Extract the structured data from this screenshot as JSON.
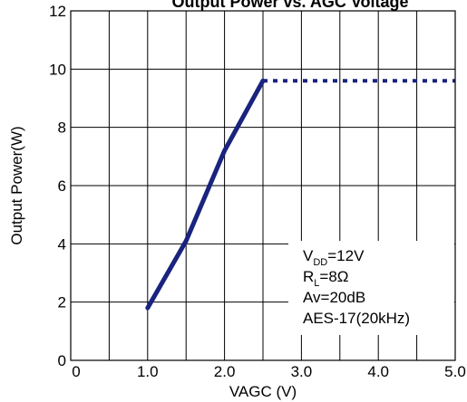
{
  "chart_data": {
    "type": "line",
    "title": "Output Power vs. AGC Voltage",
    "xlabel": "VAGC (V)",
    "ylabel": "Output Power(W)",
    "xlim": [
      0,
      5
    ],
    "ylim": [
      0,
      12
    ],
    "x_ticks": [
      0,
      0.5,
      1,
      1.5,
      2,
      2.5,
      3,
      3.5,
      4,
      4.5,
      5
    ],
    "x_tick_labels": [
      "0",
      "1.0",
      "2.0",
      "3.0",
      "4.0",
      "5.0"
    ],
    "x_tick_label_values": [
      0,
      1,
      2,
      3,
      4,
      5
    ],
    "y_ticks": [
      0,
      2,
      4,
      6,
      8,
      10,
      12
    ],
    "y_tick_labels": [
      "0",
      "2",
      "4",
      "6",
      "8",
      "10",
      "12"
    ],
    "grid": true,
    "color": "#1a237e",
    "series": [
      {
        "style": "solid",
        "x": [
          1.0,
          1.5,
          2.0,
          2.5
        ],
        "y": [
          1.8,
          4.1,
          7.2,
          9.6
        ]
      },
      {
        "style": "dotted",
        "x": [
          2.5,
          5.0
        ],
        "y": [
          9.6,
          9.6
        ]
      }
    ],
    "annotation": {
      "position": "bottom-right",
      "lines": [
        {
          "main": "V",
          "sub": "DD",
          "rest": "=12V"
        },
        {
          "main": "R",
          "sub": "L",
          "rest": "=8Ω"
        },
        {
          "main": "Av=20dB",
          "sub": "",
          "rest": ""
        },
        {
          "main": "AES-17(20kHz)",
          "sub": "",
          "rest": ""
        }
      ]
    }
  }
}
